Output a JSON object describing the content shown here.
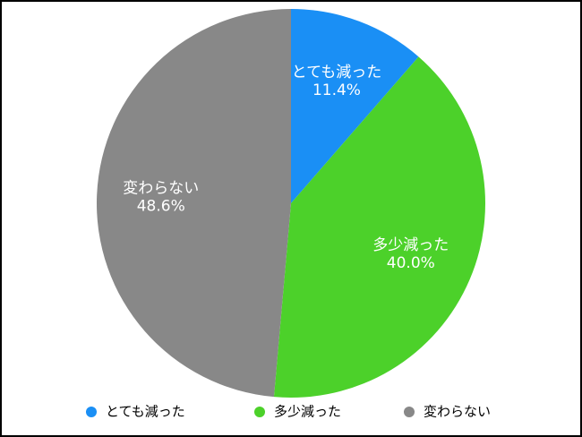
{
  "chart_data": {
    "type": "pie",
    "categories": [
      "とても減った",
      "多少減った",
      "変わらない"
    ],
    "values": [
      11.4,
      40.0,
      48.6
    ],
    "value_labels": [
      "11.4%",
      "40.0%",
      "48.6%"
    ],
    "colors": [
      "#1a8ff5",
      "#4cd12a",
      "#888888"
    ],
    "legend": "bottom"
  }
}
